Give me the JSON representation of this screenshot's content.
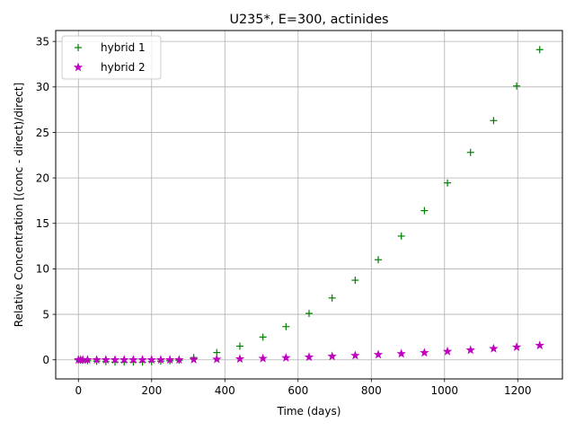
{
  "chart_data": {
    "type": "scatter",
    "title": "U235*, E=300, actinides",
    "xlabel": "Time (days)",
    "ylabel": "Relative Concentration [(conc - direct)/direct]",
    "xlim": [
      -62,
      1322
    ],
    "ylim": [
      -2.1,
      36.2
    ],
    "xticks": [
      0,
      200,
      400,
      600,
      800,
      1000,
      1200
    ],
    "yticks": [
      0,
      5,
      10,
      15,
      20,
      25,
      30,
      35
    ],
    "grid": true,
    "legend_position": "upper left",
    "series": [
      {
        "name": "hybrid 1",
        "marker": "plus",
        "color": "#008000",
        "x": [
          0,
          6,
          12,
          25,
          50,
          75,
          100,
          125,
          150,
          175,
          200,
          225,
          250,
          275,
          315,
          378,
          441,
          504,
          567,
          630,
          693,
          756,
          819,
          882,
          945,
          1008,
          1071,
          1134,
          1197,
          1260
        ],
        "y": [
          0,
          -0.05,
          -0.05,
          -0.1,
          -0.15,
          -0.2,
          -0.25,
          -0.25,
          -0.25,
          -0.25,
          -0.2,
          -0.15,
          -0.1,
          -0.05,
          0.25,
          0.8,
          1.5,
          2.5,
          3.65,
          5.1,
          6.8,
          8.75,
          11.0,
          13.6,
          16.4,
          19.45,
          22.8,
          26.3,
          30.1,
          34.1
        ]
      },
      {
        "name": "hybrid 2",
        "marker": "star",
        "color": "#bf00bf",
        "x": [
          0,
          6,
          12,
          25,
          50,
          75,
          100,
          125,
          150,
          175,
          200,
          225,
          250,
          275,
          315,
          378,
          441,
          504,
          567,
          630,
          693,
          756,
          819,
          882,
          945,
          1008,
          1071,
          1134,
          1197,
          1260
        ],
        "y": [
          0,
          0,
          0,
          0,
          0,
          0,
          0,
          0,
          0,
          0,
          0,
          0,
          0,
          0,
          0.03,
          0.06,
          0.1,
          0.15,
          0.22,
          0.3,
          0.38,
          0.47,
          0.57,
          0.67,
          0.78,
          0.92,
          1.07,
          1.23,
          1.4,
          1.58
        ]
      }
    ]
  }
}
